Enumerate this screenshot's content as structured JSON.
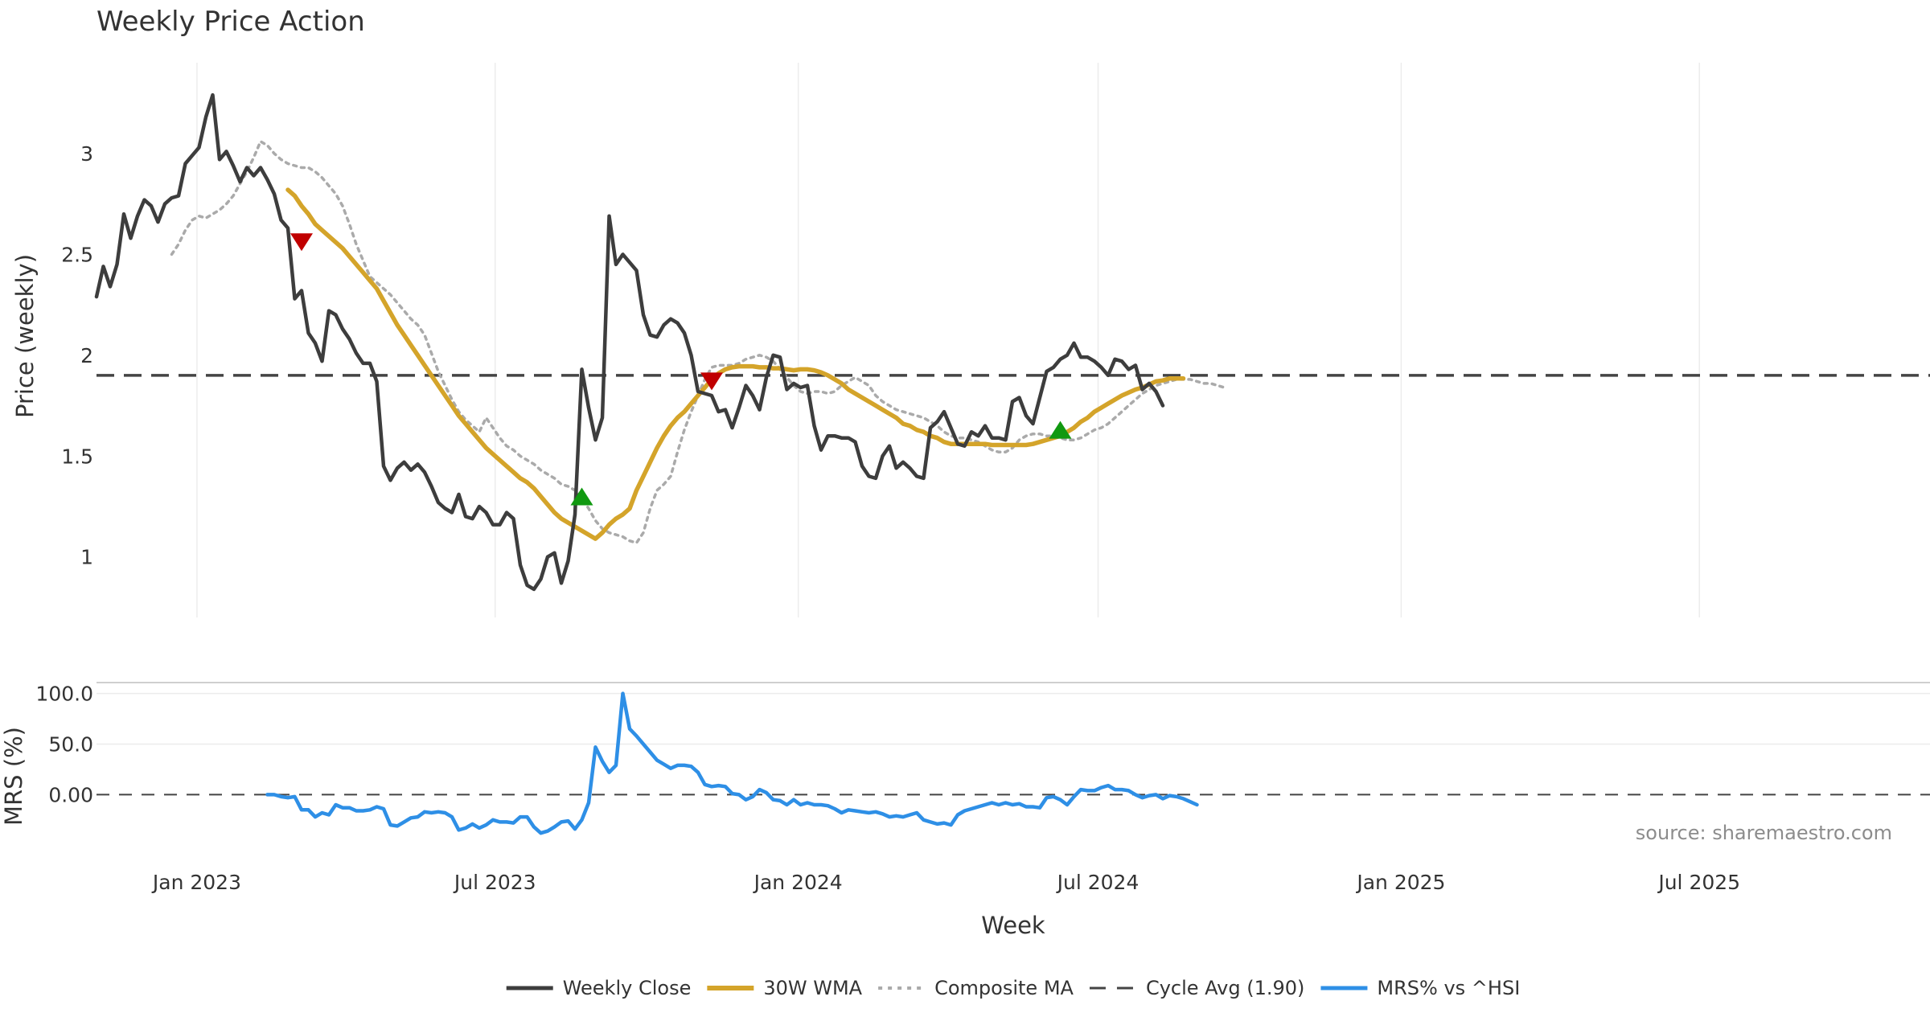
{
  "chart_data": {
    "type": "line",
    "title": "Weekly Price Action",
    "xlabel": "Week",
    "x_ticks": [
      "Jan 2023",
      "Jul 2023",
      "Jan 2024",
      "Jul 2024",
      "Jan 2025",
      "Jul 2025"
    ],
    "x_range": [
      "2022-11-01",
      "2025-11-18"
    ],
    "source": "source: sharemaestro.com",
    "grid": true,
    "legend_position": "bottom-center",
    "price_panel": {
      "ylabel": "Price (weekly)",
      "ylim": [
        0.7,
        3.45
      ],
      "y_ticks": [
        "1",
        "1.5",
        "2",
        "2.5",
        "3"
      ],
      "reference_line": {
        "name": "Cycle Avg (1.90)",
        "value": 1.9,
        "color": "#444444"
      },
      "series": [
        {
          "name": "Weekly Close",
          "color": "#3d3d3d",
          "style": "solid",
          "values": [
            2.29,
            2.44,
            2.34,
            2.45,
            2.7,
            2.58,
            2.69,
            2.77,
            2.74,
            2.66,
            2.75,
            2.78,
            2.79,
            2.95,
            2.99,
            3.03,
            3.18,
            3.29,
            2.97,
            3.01,
            2.94,
            2.86,
            2.93,
            2.89,
            2.93,
            2.87,
            2.8,
            2.67,
            2.63,
            2.28,
            2.32,
            2.11,
            2.06,
            1.97,
            2.22,
            2.2,
            2.13,
            2.08,
            2.01,
            1.96,
            1.96,
            1.87,
            1.45,
            1.38,
            1.44,
            1.47,
            1.43,
            1.46,
            1.42,
            1.35,
            1.27,
            1.24,
            1.22,
            1.31,
            1.2,
            1.19,
            1.25,
            1.22,
            1.16,
            1.16,
            1.22,
            1.19,
            0.96,
            0.86,
            0.84,
            0.89,
            1.0,
            1.02,
            0.87,
            0.98,
            1.21,
            1.93,
            1.74,
            1.58,
            1.69,
            2.69,
            2.45,
            2.5,
            2.46,
            2.42,
            2.2,
            2.1,
            2.09,
            2.15,
            2.18,
            2.16,
            2.11,
            2.0,
            1.82,
            1.81,
            1.8,
            1.72,
            1.73,
            1.64,
            1.74,
            1.85,
            1.8,
            1.73,
            1.89,
            2.0,
            1.99,
            1.83,
            1.86,
            1.84,
            1.85,
            1.65,
            1.53,
            1.6,
            1.6,
            1.59,
            1.59,
            1.57,
            1.45,
            1.4,
            1.39,
            1.5,
            1.55,
            1.44,
            1.47,
            1.44,
            1.4,
            1.39,
            1.64,
            1.67,
            1.72,
            1.64,
            1.56,
            1.55,
            1.62,
            1.6,
            1.65,
            1.59,
            1.59,
            1.58,
            1.77,
            1.79,
            1.7,
            1.66,
            1.79,
            1.92,
            1.94,
            1.98,
            2.0,
            2.06,
            1.99,
            1.99,
            1.97,
            1.94,
            1.9,
            1.98,
            1.97,
            1.93,
            1.95,
            1.83,
            1.86,
            1.82,
            1.75
          ]
        },
        {
          "name": "30W WMA",
          "color": "#d4a42a",
          "style": "solid",
          "start_index": 28,
          "values": [
            2.82,
            2.79,
            2.74,
            2.7,
            2.65,
            2.62,
            2.59,
            2.56,
            2.53,
            2.49,
            2.45,
            2.41,
            2.37,
            2.33,
            2.27,
            2.21,
            2.15,
            2.1,
            2.05,
            2.0,
            1.95,
            1.9,
            1.85,
            1.8,
            1.75,
            1.7,
            1.66,
            1.62,
            1.58,
            1.54,
            1.51,
            1.48,
            1.45,
            1.42,
            1.39,
            1.37,
            1.34,
            1.3,
            1.26,
            1.22,
            1.19,
            1.17,
            1.15,
            1.13,
            1.11,
            1.09,
            1.12,
            1.16,
            1.19,
            1.21,
            1.24,
            1.33,
            1.4,
            1.47,
            1.54,
            1.6,
            1.65,
            1.69,
            1.72,
            1.76,
            1.8,
            1.84,
            1.88,
            1.91,
            1.93,
            1.94,
            1.945,
            1.945,
            1.945,
            1.94,
            1.94,
            1.935,
            1.935,
            1.93,
            1.925,
            1.93,
            1.93,
            1.925,
            1.915,
            1.9,
            1.88,
            1.86,
            1.83,
            1.81,
            1.79,
            1.77,
            1.75,
            1.73,
            1.71,
            1.69,
            1.66,
            1.65,
            1.63,
            1.62,
            1.6,
            1.59,
            1.57,
            1.56,
            1.56,
            1.56,
            1.56,
            1.56,
            1.56,
            1.555,
            1.555,
            1.555,
            1.555,
            1.555,
            1.555,
            1.56,
            1.57,
            1.58,
            1.59,
            1.6,
            1.62,
            1.64,
            1.67,
            1.69,
            1.72,
            1.74,
            1.76,
            1.78,
            1.8,
            1.815,
            1.83,
            1.84,
            1.855,
            1.87,
            1.875,
            1.885,
            1.885,
            1.885
          ]
        },
        {
          "name": "Composite MA",
          "color": "#aaaaaa",
          "style": "dotted",
          "start_index": 11,
          "values": [
            2.5,
            2.55,
            2.62,
            2.67,
            2.69,
            2.68,
            2.7,
            2.72,
            2.75,
            2.79,
            2.85,
            2.91,
            2.98,
            3.06,
            3.04,
            3.0,
            2.97,
            2.95,
            2.94,
            2.93,
            2.93,
            2.91,
            2.88,
            2.84,
            2.8,
            2.74,
            2.65,
            2.55,
            2.47,
            2.39,
            2.36,
            2.33,
            2.3,
            2.26,
            2.22,
            2.18,
            2.15,
            2.1,
            2.01,
            1.92,
            1.85,
            1.78,
            1.72,
            1.68,
            1.65,
            1.62,
            1.69,
            1.64,
            1.59,
            1.55,
            1.53,
            1.5,
            1.48,
            1.46,
            1.43,
            1.41,
            1.39,
            1.36,
            1.35,
            1.33,
            1.29,
            1.24,
            1.18,
            1.14,
            1.12,
            1.11,
            1.1,
            1.08,
            1.07,
            1.12,
            1.24,
            1.33,
            1.36,
            1.4,
            1.52,
            1.63,
            1.72,
            1.8,
            1.88,
            1.94,
            1.95,
            1.95,
            1.95,
            1.96,
            1.98,
            1.99,
            2.0,
            1.99,
            1.97,
            1.93,
            1.89,
            1.85,
            1.82,
            1.81,
            1.82,
            1.82,
            1.81,
            1.82,
            1.85,
            1.87,
            1.89,
            1.87,
            1.85,
            1.8,
            1.77,
            1.75,
            1.73,
            1.72,
            1.71,
            1.7,
            1.69,
            1.67,
            1.65,
            1.62,
            1.6,
            1.59,
            1.59,
            1.58,
            1.57,
            1.55,
            1.53,
            1.52,
            1.52,
            1.54,
            1.58,
            1.6,
            1.61,
            1.61,
            1.6,
            1.6,
            1.59,
            1.58,
            1.58,
            1.59,
            1.61,
            1.63,
            1.64,
            1.66,
            1.69,
            1.72,
            1.75,
            1.78,
            1.81,
            1.83,
            1.85,
            1.86,
            1.87,
            1.88,
            1.88,
            1.88,
            1.87,
            1.86,
            1.86,
            1.85,
            1.84
          ]
        }
      ],
      "signals": [
        {
          "type": "sell",
          "index": 30,
          "value": 2.56,
          "color": "#c00000"
        },
        {
          "type": "buy",
          "index": 71,
          "value": 1.3,
          "color": "#119911"
        },
        {
          "type": "sell",
          "index": 90,
          "value": 1.87,
          "color": "#c00000"
        },
        {
          "type": "buy",
          "index": 141,
          "value": 1.63,
          "color": "#119911"
        }
      ]
    },
    "mrs_panel": {
      "ylabel": "MRS (%)",
      "ylim": [
        -45,
        110
      ],
      "y_ticks": [
        "0.00",
        "50.0",
        "100.0"
      ],
      "y_tick_values": [
        0,
        50,
        100
      ],
      "zero_line": {
        "value": 0,
        "color": "#444444"
      },
      "series": [
        {
          "name": "MRS% vs ^HSI",
          "color": "#2e8fe6",
          "style": "solid",
          "start_index": 25,
          "values": [
            0,
            0,
            -2,
            -3,
            -2,
            -15,
            -15,
            -22,
            -18,
            -20,
            -10,
            -13,
            -13,
            -16,
            -16,
            -15,
            -12,
            -14,
            -30,
            -31,
            -27,
            -23,
            -22,
            -17,
            -18,
            -17,
            -18,
            -22,
            -35,
            -33,
            -29,
            -33,
            -30,
            -25,
            -27,
            -27,
            -28,
            -22,
            -22,
            -32,
            -38,
            -36,
            -32,
            -27,
            -26,
            -34,
            -25,
            -8,
            47,
            33,
            22,
            29,
            100,
            65,
            58,
            50,
            42,
            34,
            30,
            26,
            29,
            29,
            28,
            22,
            10,
            8,
            9,
            8,
            1,
            0,
            -5,
            -2,
            5,
            2,
            -5,
            -6,
            -10,
            -5,
            -10,
            -8,
            -10,
            -10,
            -11,
            -14,
            -18,
            -15,
            -16,
            -17,
            -18,
            -17,
            -19,
            -22,
            -21,
            -22,
            -20,
            -18,
            -25,
            -27,
            -29,
            -28,
            -30,
            -20,
            -16,
            -14,
            -12,
            -10,
            -8,
            -10,
            -8,
            -10,
            -9,
            -12,
            -12,
            -13,
            -3,
            -2,
            -5,
            -10,
            -2,
            5,
            4,
            4,
            7,
            9,
            5,
            5,
            4,
            0,
            -3,
            -1,
            0,
            -4,
            -1,
            -2,
            -4,
            -7,
            -10
          ]
        }
      ]
    }
  }
}
